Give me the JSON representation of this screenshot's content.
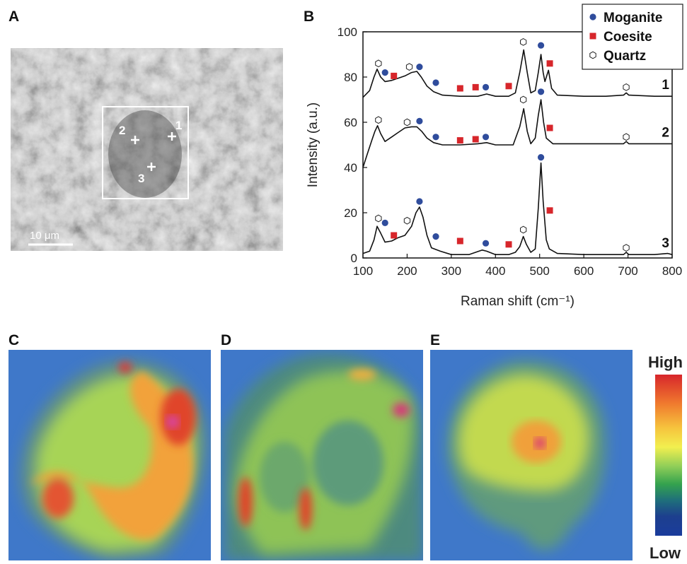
{
  "panels": {
    "a": "A",
    "b": "B",
    "c": "C",
    "d": "D",
    "e": "E"
  },
  "micrograph": {
    "scale_bar": "10 μm",
    "points": [
      "1",
      "2",
      "3"
    ]
  },
  "colorbar": {
    "high": "High",
    "low": "Low"
  },
  "colors": {
    "moganite": "#2f4c9c",
    "coesite": "#d7262b",
    "quartz": "#ffffff",
    "line": "#111111"
  },
  "chart_data": {
    "type": "line",
    "xlabel": "Raman shift (cm⁻¹)",
    "ylabel": "Intensity (a.u.)",
    "xlim": [
      100,
      800
    ],
    "ylim": [
      0,
      100
    ],
    "xticks": [
      "100",
      "200",
      "300",
      "400",
      "500",
      "600",
      "700",
      "800"
    ],
    "yticks": [
      "0",
      "20",
      "40",
      "60",
      "80",
      "100"
    ],
    "legend": {
      "position": "top-right",
      "entries": [
        {
          "label": "Moganite",
          "marker": "circle"
        },
        {
          "label": "Coesite",
          "marker": "square"
        },
        {
          "label": "Quartz",
          "marker": "hexagon"
        }
      ]
    },
    "series": [
      {
        "name": "1",
        "points": [
          [
            100,
            71
          ],
          [
            115,
            74
          ],
          [
            125,
            80
          ],
          [
            132,
            83.5
          ],
          [
            140,
            80
          ],
          [
            150,
            78
          ],
          [
            165,
            78.5
          ],
          [
            180,
            79.5
          ],
          [
            195,
            80.5
          ],
          [
            210,
            82
          ],
          [
            222,
            82.5
          ],
          [
            232,
            80
          ],
          [
            245,
            76
          ],
          [
            260,
            73.5
          ],
          [
            280,
            72
          ],
          [
            320,
            71.5
          ],
          [
            360,
            71.5
          ],
          [
            380,
            72.5
          ],
          [
            400,
            71.5
          ],
          [
            430,
            71.5
          ],
          [
            445,
            73
          ],
          [
            455,
            82
          ],
          [
            464,
            92
          ],
          [
            472,
            82
          ],
          [
            480,
            73
          ],
          [
            490,
            74
          ],
          [
            497,
            82
          ],
          [
            503,
            90
          ],
          [
            508,
            82
          ],
          [
            512,
            78
          ],
          [
            520,
            83
          ],
          [
            527,
            75
          ],
          [
            540,
            72
          ],
          [
            600,
            71.5
          ],
          [
            650,
            71.5
          ],
          [
            690,
            72
          ],
          [
            696,
            73
          ],
          [
            702,
            72
          ],
          [
            760,
            71.5
          ],
          [
            800,
            71.5
          ]
        ],
        "markers": {
          "moganite": [
            [
              150,
              82
            ],
            [
              228,
              84.5
            ],
            [
              265,
              77.5
            ],
            [
              378,
              75.5
            ],
            [
              503,
              94
            ]
          ],
          "coesite": [
            [
              170,
              80.5
            ],
            [
              320,
              75
            ],
            [
              355,
              75.5
            ],
            [
              430,
              76
            ],
            [
              523,
              86
            ]
          ],
          "quartz": [
            [
              135,
              86
            ],
            [
              205,
              84.5
            ],
            [
              463,
              95.5
            ],
            [
              696,
              75.5
            ]
          ]
        }
      },
      {
        "name": "2",
        "points": [
          [
            100,
            40
          ],
          [
            110,
            46
          ],
          [
            120,
            52
          ],
          [
            127,
            56
          ],
          [
            133,
            58.5
          ],
          [
            140,
            55
          ],
          [
            150,
            51.5
          ],
          [
            165,
            53.5
          ],
          [
            180,
            55.5
          ],
          [
            195,
            57.5
          ],
          [
            210,
            58
          ],
          [
            222,
            58
          ],
          [
            233,
            56
          ],
          [
            245,
            53
          ],
          [
            260,
            51
          ],
          [
            280,
            50
          ],
          [
            320,
            50
          ],
          [
            360,
            50.5
          ],
          [
            380,
            51
          ],
          [
            400,
            50
          ],
          [
            440,
            50
          ],
          [
            455,
            58
          ],
          [
            464,
            66
          ],
          [
            472,
            56
          ],
          [
            480,
            50.5
          ],
          [
            490,
            53
          ],
          [
            497,
            63
          ],
          [
            503,
            70
          ],
          [
            509,
            60
          ],
          [
            515,
            53
          ],
          [
            530,
            50.5
          ],
          [
            600,
            50.5
          ],
          [
            690,
            50.5
          ],
          [
            696,
            51.5
          ],
          [
            702,
            50.5
          ],
          [
            760,
            50.5
          ],
          [
            800,
            50.5
          ]
        ],
        "markers": {
          "moganite": [
            [
              228,
              60.5
            ],
            [
              265,
              53.5
            ],
            [
              378,
              53.5
            ],
            [
              503,
              73.5
            ]
          ],
          "coesite": [
            [
              320,
              52
            ],
            [
              355,
              52.5
            ],
            [
              523,
              57.5
            ]
          ],
          "quartz": [
            [
              135,
              61
            ],
            [
              200,
              60
            ],
            [
              463,
              70
            ],
            [
              696,
              53.5
            ]
          ]
        }
      },
      {
        "name": "3",
        "points": [
          [
            100,
            2
          ],
          [
            115,
            3
          ],
          [
            125,
            8
          ],
          [
            132,
            14
          ],
          [
            140,
            11
          ],
          [
            150,
            7
          ],
          [
            165,
            7.5
          ],
          [
            180,
            9
          ],
          [
            195,
            10
          ],
          [
            210,
            14
          ],
          [
            220,
            20
          ],
          [
            228,
            22.5
          ],
          [
            236,
            18
          ],
          [
            245,
            10
          ],
          [
            255,
            4.5
          ],
          [
            275,
            3
          ],
          [
            300,
            1.5
          ],
          [
            320,
            1.5
          ],
          [
            340,
            1.5
          ],
          [
            370,
            3.5
          ],
          [
            380,
            3
          ],
          [
            400,
            1.5
          ],
          [
            430,
            1.5
          ],
          [
            445,
            2.5
          ],
          [
            455,
            5
          ],
          [
            463,
            9.5
          ],
          [
            470,
            6
          ],
          [
            480,
            2.5
          ],
          [
            490,
            4
          ],
          [
            497,
            22
          ],
          [
            503,
            42
          ],
          [
            508,
            25
          ],
          [
            515,
            8
          ],
          [
            522,
            4
          ],
          [
            540,
            2
          ],
          [
            600,
            1.5
          ],
          [
            690,
            1.5
          ],
          [
            696,
            2.5
          ],
          [
            702,
            1.5
          ],
          [
            760,
            1.5
          ],
          [
            790,
            2
          ],
          [
            800,
            1.5
          ]
        ],
        "markers": {
          "moganite": [
            [
              150,
              15.5
            ],
            [
              228,
              25
            ],
            [
              265,
              9.5
            ],
            [
              378,
              6.5
            ],
            [
              503,
              44.5
            ]
          ],
          "coesite": [
            [
              170,
              10
            ],
            [
              320,
              7.5
            ],
            [
              430,
              6
            ],
            [
              523,
              21
            ]
          ],
          "quartz": [
            [
              135,
              17.5
            ],
            [
              200,
              16.5
            ],
            [
              463,
              12.5
            ],
            [
              696,
              4.5
            ]
          ]
        }
      }
    ]
  }
}
